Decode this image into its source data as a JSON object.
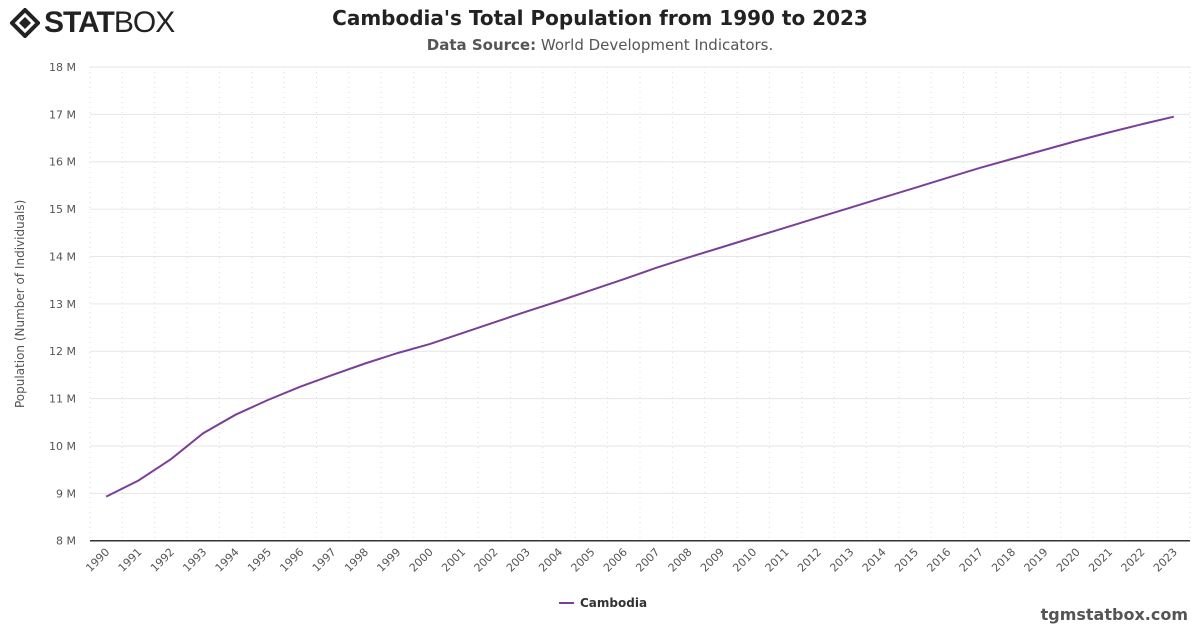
{
  "logo": {
    "bold": "STAT",
    "light": "BOX"
  },
  "header": {
    "title": "Cambodia's Total Population from 1990 to 2023",
    "source_label": "Data Source:",
    "source_value": "World Development Indicators."
  },
  "footer": {
    "site": "tgmstatbox.com"
  },
  "chart_data": {
    "type": "line",
    "title": "Cambodia's Total Population from 1990 to 2023",
    "ylabel": "Population (Number of Individuals)",
    "xlabel": "",
    "ylim": [
      8,
      18
    ],
    "y_unit": "M",
    "yticks": [
      "8 M",
      "9 M",
      "10 M",
      "11 M",
      "12 M",
      "13 M",
      "14 M",
      "15 M",
      "16 M",
      "17 M",
      "18 M"
    ],
    "grid": true,
    "legend": "bottom-center",
    "color": "#7b3f98",
    "categories": [
      "1990",
      "1991",
      "1992",
      "1993",
      "1994",
      "1995",
      "1996",
      "1997",
      "1998",
      "1999",
      "2000",
      "2001",
      "2002",
      "2003",
      "2004",
      "2005",
      "2006",
      "2007",
      "2008",
      "2009",
      "2010",
      "2011",
      "2012",
      "2013",
      "2014",
      "2015",
      "2016",
      "2017",
      "2018",
      "2019",
      "2020",
      "2021",
      "2022",
      "2023"
    ],
    "series": [
      {
        "name": "Cambodia",
        "values": [
          8.93,
          9.27,
          9.72,
          10.27,
          10.66,
          10.97,
          11.25,
          11.5,
          11.74,
          11.96,
          12.15,
          12.38,
          12.61,
          12.84,
          13.06,
          13.29,
          13.52,
          13.76,
          13.98,
          14.19,
          14.4,
          14.61,
          14.82,
          15.03,
          15.24,
          15.45,
          15.66,
          15.87,
          16.06,
          16.25,
          16.44,
          16.62,
          16.79,
          16.95
        ]
      }
    ]
  }
}
